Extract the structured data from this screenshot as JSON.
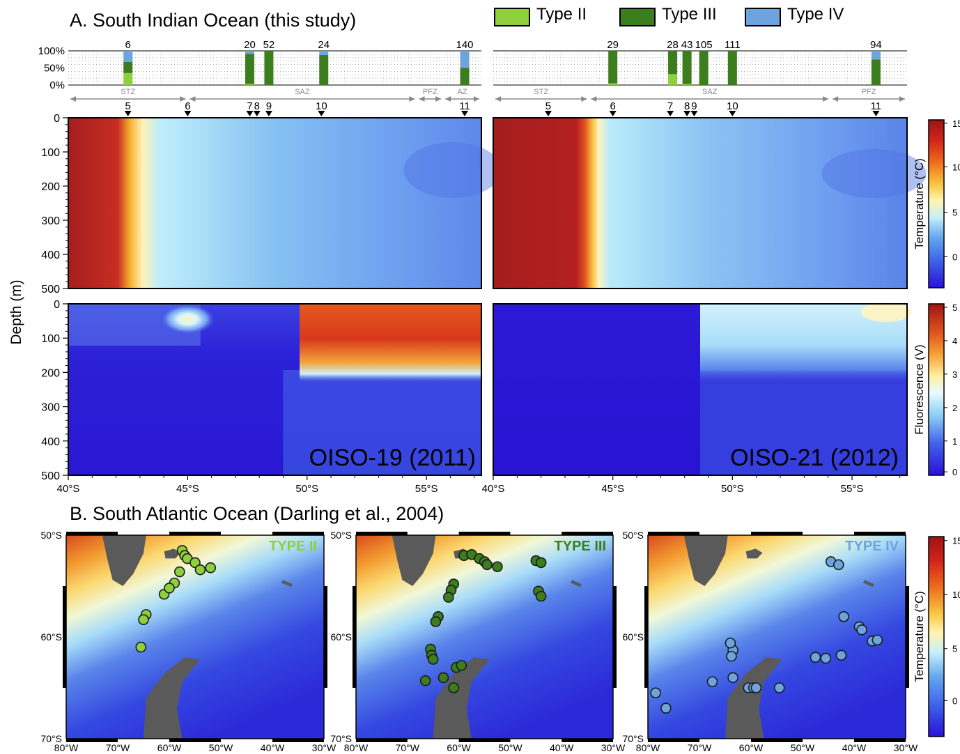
{
  "panel_a": {
    "title": "A. South Indian Ocean (this study)",
    "depth_label": "Depth (m)",
    "legend": [
      {
        "label": "Type II",
        "color": "#8fce3c"
      },
      {
        "label": "Type III",
        "color": "#3c7d1e"
      },
      {
        "label": "Type IV",
        "color": "#6ea4dd"
      }
    ],
    "pct_ticks": [
      "100%",
      "50%",
      "0%"
    ],
    "depth_ticks": [
      "0",
      "100",
      "200",
      "300",
      "400",
      "500"
    ],
    "lat_ticks": [
      "40°S",
      "45°S",
      "50°S",
      "55°S"
    ],
    "temp_colorbar": {
      "label": "Temperature (°C)",
      "ticks": [
        "15",
        "10",
        "5",
        "0"
      ]
    },
    "fluor_colorbar": {
      "label": "Fluorescence (V)",
      "ticks": [
        "5",
        "4",
        "3",
        "2",
        "1",
        "0"
      ]
    }
  },
  "panel_b": {
    "title": "B. South Atlantic Ocean (Darling et al., 2004)",
    "lat_ticks": [
      "50°S",
      "60°S",
      "70°S"
    ],
    "lon_ticks": [
      "80°W",
      "70°W",
      "60°W",
      "50°W",
      "40°W",
      "30°W"
    ],
    "colorbar": {
      "label": "Temperature (°C)",
      "ticks": [
        "15",
        "10",
        "5",
        "0"
      ]
    }
  },
  "chart_data": [
    {
      "type": "bar",
      "name": "OISO-19 genotype composition",
      "x_lat": [
        42.5,
        47.6,
        48.4,
        50.7,
        56.6
      ],
      "counts": [
        "6",
        "20",
        "52",
        "24",
        "140"
      ],
      "series": [
        {
          "name": "Type II",
          "values": [
            0.35,
            0.03,
            0.0,
            0.0,
            0.0
          ]
        },
        {
          "name": "Type III",
          "values": [
            0.33,
            0.88,
            1.0,
            0.88,
            0.5
          ]
        },
        {
          "name": "Type IV",
          "values": [
            0.32,
            0.09,
            0.0,
            0.12,
            0.5
          ]
        }
      ],
      "stations": [
        {
          "label": "5",
          "lat": 42.5
        },
        {
          "label": "6",
          "lat": 45.0
        },
        {
          "label": "7",
          "lat": 47.6
        },
        {
          "label": "8",
          "lat": 47.9
        },
        {
          "label": "9",
          "lat": 48.4
        },
        {
          "label": "10",
          "lat": 50.6
        },
        {
          "label": "11",
          "lat": 56.6
        }
      ],
      "fronts": [
        {
          "label": "STZ",
          "from": 40,
          "to": 45
        },
        {
          "label": "SAZ",
          "from": 45,
          "to": 54.6
        },
        {
          "label": "PFZ",
          "from": 54.6,
          "to": 55.7
        },
        {
          "label": "AZ",
          "from": 55.7,
          "to": 57.3
        }
      ]
    },
    {
      "type": "bar",
      "name": "OISO-21 genotype composition",
      "x_lat": [
        45.0,
        47.5,
        48.1,
        48.8,
        50.0,
        56.0
      ],
      "counts": [
        "29",
        "28",
        "43",
        "105",
        "111",
        "94"
      ],
      "series": [
        {
          "name": "Type II",
          "values": [
            0.05,
            0.32,
            0.03,
            0.0,
            0.0,
            0.0
          ]
        },
        {
          "name": "Type III",
          "values": [
            0.95,
            0.68,
            0.97,
            1.0,
            1.0,
            0.75
          ]
        },
        {
          "name": "Type IV",
          "values": [
            0.0,
            0.0,
            0.0,
            0.0,
            0.0,
            0.25
          ]
        }
      ],
      "stations": [
        {
          "label": "5",
          "lat": 42.3
        },
        {
          "label": "6",
          "lat": 45.0
        },
        {
          "label": "7",
          "lat": 47.4
        },
        {
          "label": "8",
          "lat": 48.1
        },
        {
          "label": "9",
          "lat": 48.4
        },
        {
          "label": "10",
          "lat": 50.0
        },
        {
          "label": "11",
          "lat": 56.0
        }
      ],
      "fronts": [
        {
          "label": "STZ",
          "from": 40,
          "to": 44.0
        },
        {
          "label": "SAZ",
          "from": 44.0,
          "to": 54.1
        },
        {
          "label": "PFZ",
          "from": 54.1,
          "to": 57.3
        }
      ]
    },
    {
      "type": "heatmap",
      "name": "OISO-19 temperature section",
      "label": "OISO-19 (2011)",
      "xlim": [
        40,
        57.3
      ],
      "ylim": [
        0,
        500
      ],
      "stops": [
        {
          "lat": 40,
          "t": 14
        },
        {
          "lat": 42.7,
          "t": 12
        },
        {
          "lat": 43.3,
          "t": 5
        },
        {
          "lat": 45,
          "t": 3.5
        },
        {
          "lat": 52,
          "t": 3.0
        },
        {
          "lat": 57.3,
          "t": 2.3
        }
      ]
    },
    {
      "type": "heatmap",
      "name": "OISO-21 temperature section",
      "label": "OISO-21 (2012)",
      "xlim": [
        40,
        57.3
      ],
      "ylim": [
        0,
        500
      ],
      "stops": [
        {
          "lat": 40,
          "t": 14
        },
        {
          "lat": 43.3,
          "t": 13
        },
        {
          "lat": 44.1,
          "t": 5
        },
        {
          "lat": 46,
          "t": 3.5
        },
        {
          "lat": 52,
          "t": 3.0
        },
        {
          "lat": 57.3,
          "t": 2.2
        }
      ]
    },
    {
      "type": "heatmap",
      "name": "OISO-19 fluorescence section",
      "label": "OISO-19 (2011)",
      "xlim": [
        40,
        57.3
      ],
      "ylim": [
        0,
        500
      ],
      "features": [
        {
          "lat_from": 50,
          "lat_to": 57.3,
          "depth_from": 0,
          "depth_to": 110,
          "value": 3.8
        },
        {
          "lat": 45,
          "depth": 40,
          "value": 3.0
        }
      ]
    },
    {
      "type": "heatmap",
      "name": "OISO-21 fluorescence section",
      "label": "OISO-21 (2012)",
      "xlim": [
        40,
        57.3
      ],
      "ylim": [
        0,
        500
      ],
      "features": [
        {
          "lat_from": 49.5,
          "lat_to": 57.3,
          "depth_from": 0,
          "depth_to": 120,
          "value": 2.0
        }
      ]
    },
    {
      "type": "scatter",
      "name": "Type II stations",
      "label": "TYPE II",
      "color": "#8fce3c",
      "xlim": [
        -80,
        -30
      ],
      "ylim": [
        -70,
        -50
      ],
      "points": [
        {
          "lon": -57.5,
          "lat": -51.5
        },
        {
          "lon": -57.0,
          "lat": -52.0
        },
        {
          "lon": -56.5,
          "lat": -52.3
        },
        {
          "lon": -55.0,
          "lat": -52.7
        },
        {
          "lon": -54.0,
          "lat": -53.4
        },
        {
          "lon": -52.0,
          "lat": -53.2
        },
        {
          "lon": -58.0,
          "lat": -53.6
        },
        {
          "lon": -59.0,
          "lat": -54.7
        },
        {
          "lon": -61.0,
          "lat": -55.8
        },
        {
          "lon": -60.0,
          "lat": -55.2
        },
        {
          "lon": -64.5,
          "lat": -57.8
        },
        {
          "lon": -65.0,
          "lat": -58.3
        },
        {
          "lon": -65.5,
          "lat": -61.0
        }
      ]
    },
    {
      "type": "scatter",
      "name": "Type III stations",
      "label": "TYPE III",
      "color": "#3c7d1e",
      "xlim": [
        -80,
        -30
      ],
      "ylim": [
        -70,
        -50
      ],
      "points": [
        {
          "lon": -59.0,
          "lat": -52.0
        },
        {
          "lon": -57.5,
          "lat": -51.9
        },
        {
          "lon": -56.0,
          "lat": -52.3
        },
        {
          "lon": -55.0,
          "lat": -52.6
        },
        {
          "lon": -54.5,
          "lat": -52.9
        },
        {
          "lon": -52.5,
          "lat": -53.1
        },
        {
          "lon": -61.0,
          "lat": -54.8
        },
        {
          "lon": -61.5,
          "lat": -55.4
        },
        {
          "lon": -62.0,
          "lat": -56.1
        },
        {
          "lon": -64.0,
          "lat": -58.0
        },
        {
          "lon": -64.5,
          "lat": -58.5
        },
        {
          "lon": -65.5,
          "lat": -61.2
        },
        {
          "lon": -65.3,
          "lat": -61.8
        },
        {
          "lon": -65.0,
          "lat": -62.2
        },
        {
          "lon": -60.5,
          "lat": -63.0
        },
        {
          "lon": -59.5,
          "lat": -62.8
        },
        {
          "lon": -63.0,
          "lat": -64.0
        },
        {
          "lon": -66.5,
          "lat": -64.3
        },
        {
          "lon": -61.0,
          "lat": -65.0
        },
        {
          "lon": -45.0,
          "lat": -52.5
        },
        {
          "lon": -44.0,
          "lat": -52.7
        },
        {
          "lon": -44.5,
          "lat": -55.5
        },
        {
          "lon": -44.0,
          "lat": -56.0
        }
      ]
    },
    {
      "type": "scatter",
      "name": "Type IV stations",
      "label": "TYPE IV",
      "color": "#6ea4dd",
      "xlim": [
        -80,
        -30
      ],
      "ylim": [
        -70,
        -50
      ],
      "points": [
        {
          "lon": -44.5,
          "lat": -52.6
        },
        {
          "lon": -43.0,
          "lat": -52.9
        },
        {
          "lon": -42.0,
          "lat": -58.0
        },
        {
          "lon": -39.0,
          "lat": -59.0
        },
        {
          "lon": -38.5,
          "lat": -59.3
        },
        {
          "lon": -36.5,
          "lat": -60.4
        },
        {
          "lon": -35.5,
          "lat": -60.3
        },
        {
          "lon": -42.5,
          "lat": -61.8
        },
        {
          "lon": -47.5,
          "lat": -62.0
        },
        {
          "lon": -45.5,
          "lat": -62.1
        },
        {
          "lon": -63.5,
          "lat": -61.3
        },
        {
          "lon": -63.8,
          "lat": -61.9
        },
        {
          "lon": -64.0,
          "lat": -60.6
        },
        {
          "lon": -67.5,
          "lat": -64.4
        },
        {
          "lon": -63.5,
          "lat": -64.0
        },
        {
          "lon": -60.5,
          "lat": -65.0
        },
        {
          "lon": -59.5,
          "lat": -65.0
        },
        {
          "lon": -59.0,
          "lat": -65.0
        },
        {
          "lon": -54.5,
          "lat": -65.0
        },
        {
          "lon": -78.5,
          "lat": -65.5
        },
        {
          "lon": -76.5,
          "lat": -67.0
        }
      ]
    }
  ]
}
